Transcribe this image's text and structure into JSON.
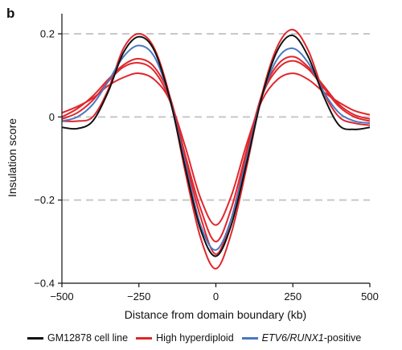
{
  "panel_label": "b",
  "colors": {
    "black": "#111111",
    "red": "#e0262c",
    "blue": "#4a78c2",
    "grid": "#c8c8c8"
  },
  "legend": [
    {
      "label": "GM12878 cell line",
      "color": "#111111",
      "italic_part": "",
      "suffix": ""
    },
    {
      "label": "High hyperdiploid",
      "color": "#e0262c",
      "italic_part": "",
      "suffix": ""
    },
    {
      "label": "",
      "color": "#4a78c2",
      "italic_part": "ETV6/RUNX1",
      "suffix": "-positive"
    }
  ],
  "chart_data": {
    "type": "line",
    "title": "",
    "xlabel": "Distance from domain boundary (kb)",
    "ylabel": "Insulation score",
    "xlim": [
      -500,
      500
    ],
    "ylim": [
      -0.4,
      0.25
    ],
    "xticks": [
      -500,
      -250,
      0,
      250,
      500
    ],
    "xtick_labels": [
      "−500",
      "−250",
      "0",
      "250",
      "500"
    ],
    "yticks": [
      -0.4,
      -0.2,
      0,
      0.2
    ],
    "ytick_labels": [
      "−0.4",
      "−0.2",
      "0",
      "0.2"
    ],
    "dashed_gridlines_y": [
      -0.2,
      0,
      0.2
    ],
    "series": [
      {
        "group": "GM12878 cell line",
        "color": "#111111",
        "x": [
          -500,
          -450,
          -400,
          -350,
          -300,
          -250,
          -200,
          -150,
          -100,
          -50,
          0,
          50,
          100,
          150,
          200,
          250,
          300,
          350,
          400,
          450,
          500
        ],
        "y": [
          -0.025,
          -0.028,
          -0.01,
          0.06,
          0.155,
          0.193,
          0.16,
          0.045,
          -0.12,
          -0.27,
          -0.335,
          -0.26,
          -0.11,
          0.05,
          0.16,
          0.196,
          0.145,
          0.05,
          -0.02,
          -0.03,
          -0.025
        ]
      },
      {
        "group": "High hyperdiploid",
        "color": "#e0262c",
        "x": [
          -500,
          -450,
          -400,
          -350,
          -300,
          -250,
          -200,
          -150,
          -100,
          -50,
          0,
          50,
          100,
          150,
          200,
          250,
          300,
          350,
          400,
          450,
          500
        ],
        "y": [
          -0.01,
          -0.01,
          0.0,
          0.065,
          0.165,
          0.2,
          0.165,
          0.05,
          -0.13,
          -0.29,
          -0.365,
          -0.28,
          -0.12,
          0.055,
          0.17,
          0.21,
          0.16,
          0.06,
          0.0,
          -0.015,
          -0.02
        ]
      },
      {
        "group": "High hyperdiploid",
        "color": "#e0262c",
        "x": [
          -500,
          -450,
          -400,
          -350,
          -300,
          -250,
          -200,
          -150,
          -100,
          -50,
          0,
          50,
          100,
          150,
          200,
          250,
          300,
          350,
          400,
          450,
          500
        ],
        "y": [
          0.0,
          0.02,
          0.05,
          0.09,
          0.125,
          0.14,
          0.12,
          0.05,
          -0.09,
          -0.22,
          -0.3,
          -0.22,
          -0.08,
          0.055,
          0.125,
          0.145,
          0.12,
          0.075,
          0.03,
          0.005,
          -0.005
        ]
      },
      {
        "group": "High hyperdiploid",
        "color": "#e0262c",
        "x": [
          -500,
          -450,
          -400,
          -350,
          -300,
          -250,
          -200,
          -150,
          -100,
          -50,
          0,
          50,
          100,
          150,
          200,
          250,
          300,
          350,
          400,
          450,
          500
        ],
        "y": [
          -0.005,
          0.01,
          0.04,
          0.085,
          0.12,
          0.13,
          0.11,
          0.04,
          -0.1,
          -0.24,
          -0.33,
          -0.245,
          -0.09,
          0.05,
          0.115,
          0.135,
          0.115,
          0.07,
          0.025,
          0.0,
          -0.01
        ]
      },
      {
        "group": "High hyperdiploid",
        "color": "#e0262c",
        "x": [
          -500,
          -450,
          -400,
          -350,
          -300,
          -250,
          -200,
          -150,
          -100,
          -50,
          0,
          50,
          100,
          150,
          200,
          250,
          300,
          350,
          400,
          450,
          500
        ],
        "y": [
          0.01,
          0.025,
          0.045,
          0.075,
          0.095,
          0.105,
          0.09,
          0.04,
          -0.07,
          -0.195,
          -0.26,
          -0.19,
          -0.065,
          0.04,
          0.09,
          0.105,
          0.09,
          0.06,
          0.035,
          0.015,
          0.005
        ]
      },
      {
        "group": "ETV6/RUNX1-positive",
        "color": "#4a78c2",
        "x": [
          -500,
          -450,
          -400,
          -350,
          -300,
          -250,
          -200,
          -150,
          -100,
          -50,
          0,
          50,
          100,
          150,
          200,
          250,
          300,
          350,
          400,
          450,
          500
        ],
        "y": [
          -0.01,
          0.0,
          0.03,
          0.085,
          0.145,
          0.172,
          0.145,
          0.045,
          -0.11,
          -0.26,
          -0.32,
          -0.245,
          -0.1,
          0.05,
          0.14,
          0.165,
          0.13,
          0.06,
          0.01,
          -0.01,
          -0.015
        ]
      }
    ]
  }
}
